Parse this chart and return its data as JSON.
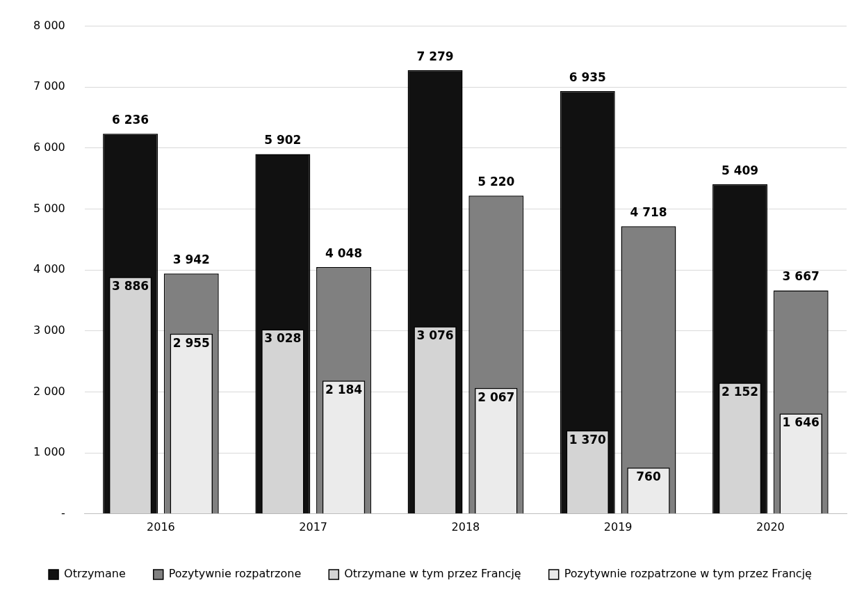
{
  "chart_data": {
    "type": "bar",
    "categories": [
      "2016",
      "2017",
      "2018",
      "2019",
      "2020"
    ],
    "series": [
      {
        "name": "Otrzymane",
        "color": "#111111",
        "values": [
          6236,
          5902,
          7279,
          6935,
          5409
        ],
        "value_labels": [
          "6 236",
          "5 902",
          "7 279",
          "6 935",
          "5 409"
        ]
      },
      {
        "name": "Pozytywnie rozpatrzone",
        "color": "#808080",
        "values": [
          3942,
          4048,
          5220,
          4718,
          3667
        ],
        "value_labels": [
          "3 942",
          "4 048",
          "5 220",
          "4 718",
          "3 667"
        ]
      },
      {
        "name": "Otrzymane w tym przez Francję",
        "color": "#d4d4d4",
        "values": [
          3886,
          3028,
          3076,
          1370,
          2152
        ],
        "value_labels": [
          "3 886",
          "3 028",
          "3 076",
          "1 370",
          "2 152"
        ]
      },
      {
        "name": "Pozytywnie rozpatrzone w tym przez Francję",
        "color": "#ebebeb",
        "values": [
          2955,
          2184,
          2067,
          760,
          1646
        ],
        "value_labels": [
          "2 955",
          "2 184",
          "2 067",
          "760",
          "1 646"
        ]
      }
    ],
    "ylim": [
      0,
      8000
    ],
    "yticks": [
      {
        "value": 0,
        "label": "-"
      },
      {
        "value": 1000,
        "label": "1 000"
      },
      {
        "value": 2000,
        "label": "2 000"
      },
      {
        "value": 3000,
        "label": "3 000"
      },
      {
        "value": 4000,
        "label": "4 000"
      },
      {
        "value": 5000,
        "label": "5 000"
      },
      {
        "value": 6000,
        "label": "6 000"
      },
      {
        "value": 7000,
        "label": "7 000"
      },
      {
        "value": 8000,
        "label": "8 000"
      }
    ],
    "grid": "y",
    "legend": "bottom"
  }
}
